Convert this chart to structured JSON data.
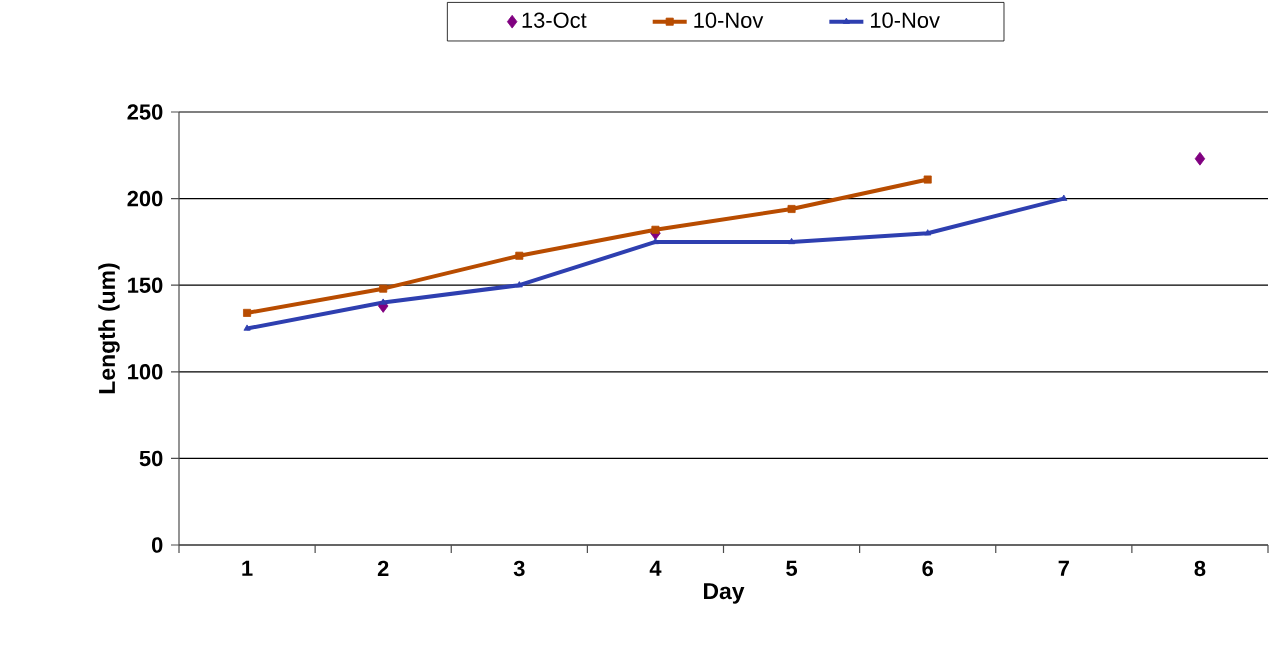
{
  "chart_data": {
    "type": "line",
    "xlabel": "Day",
    "ylabel": "Length (um)",
    "categories": [
      "1",
      "2",
      "3",
      "4",
      "5",
      "6",
      "7",
      "8"
    ],
    "series": [
      {
        "name": "13-Oct",
        "type": "scatter",
        "color": "#800080",
        "marker": "diamond",
        "values": [
          null,
          138,
          null,
          180,
          null,
          null,
          null,
          223
        ]
      },
      {
        "name": "10-Nov",
        "color": "#B84C00",
        "marker": "square",
        "values": [
          134,
          148,
          167,
          182,
          194,
          211,
          null,
          null
        ]
      },
      {
        "name": "10-Nov",
        "color": "#2E3FB0",
        "marker": "triangle",
        "values": [
          125,
          140,
          150,
          175,
          175,
          180,
          200,
          null
        ]
      }
    ],
    "ylim": [
      0,
      250
    ],
    "yticks": [
      0,
      50,
      100,
      150,
      200,
      250
    ],
    "grid": "y",
    "legend": "top"
  }
}
